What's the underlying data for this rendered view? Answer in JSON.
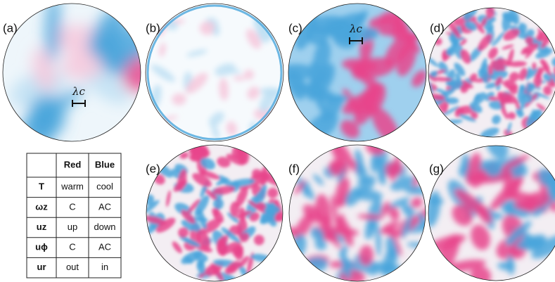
{
  "panels": [
    {
      "label": "(a)",
      "annotation": "λc"
    },
    {
      "label": "(b)"
    },
    {
      "label": "(c)",
      "annotation": "λc"
    },
    {
      "label": "(d)"
    },
    {
      "label": "(e)"
    },
    {
      "label": "(f)"
    },
    {
      "label": "(g)"
    }
  ],
  "table": {
    "header": [
      "Red",
      "Blue"
    ],
    "rows": [
      [
        "T",
        "warm",
        "cool"
      ],
      [
        "ωz",
        "C",
        "AC"
      ],
      [
        "uz",
        "up",
        "down"
      ],
      [
        "uϕ",
        "C",
        "AC"
      ],
      [
        "ur",
        "out",
        "in"
      ]
    ]
  }
}
